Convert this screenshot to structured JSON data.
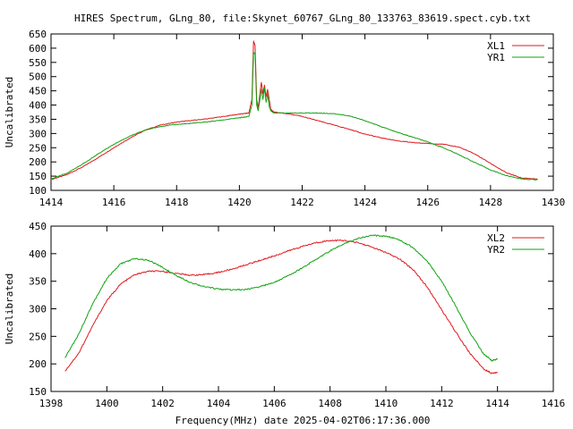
{
  "figure": {
    "title": "HIRES Spectrum, GLng_80, file:Skynet_60767_GLng_80_133763_83619.spect.cyb.txt",
    "footer": "Frequency(MHz) date 2025-04-02T06:17:36.000"
  },
  "chart_data": [
    {
      "type": "line",
      "ylabel": "Uncalibrated",
      "xlabel": "",
      "xlim": [
        1414,
        1430
      ],
      "ylim": [
        100,
        650
      ],
      "xticks": [
        1414,
        1416,
        1418,
        1420,
        1422,
        1424,
        1426,
        1428,
        1430
      ],
      "yticks": [
        100,
        150,
        200,
        250,
        300,
        350,
        400,
        450,
        500,
        550,
        600,
        650
      ],
      "legend_position": "top-right",
      "grid": false,
      "series": [
        {
          "name": "XL1",
          "color": "#e0191e",
          "points": [
            [
              1414.0,
              138
            ],
            [
              1414.5,
              155
            ],
            [
              1415.0,
              182
            ],
            [
              1415.5,
              215
            ],
            [
              1416.0,
              250
            ],
            [
              1416.5,
              283
            ],
            [
              1417.0,
              312
            ],
            [
              1417.5,
              330
            ],
            [
              1418.0,
              340
            ],
            [
              1418.5,
              346
            ],
            [
              1419.0,
              352
            ],
            [
              1419.5,
              360
            ],
            [
              1420.0,
              368
            ],
            [
              1420.3,
              372
            ],
            [
              1420.4,
              420
            ],
            [
              1420.45,
              625
            ],
            [
              1420.5,
              610
            ],
            [
              1420.55,
              420
            ],
            [
              1420.6,
              390
            ],
            [
              1420.7,
              480
            ],
            [
              1420.75,
              440
            ],
            [
              1420.8,
              470
            ],
            [
              1420.85,
              430
            ],
            [
              1420.9,
              455
            ],
            [
              1420.95,
              420
            ],
            [
              1421.0,
              385
            ],
            [
              1421.1,
              375
            ],
            [
              1421.5,
              370
            ],
            [
              1422.0,
              360
            ],
            [
              1422.5,
              345
            ],
            [
              1423.0,
              330
            ],
            [
              1423.5,
              315
            ],
            [
              1424.0,
              298
            ],
            [
              1424.5,
              285
            ],
            [
              1425.0,
              275
            ],
            [
              1425.5,
              268
            ],
            [
              1426.0,
              265
            ],
            [
              1426.5,
              262
            ],
            [
              1427.0,
              252
            ],
            [
              1427.5,
              228
            ],
            [
              1428.0,
              195
            ],
            [
              1428.5,
              162
            ],
            [
              1429.0,
              143
            ],
            [
              1429.5,
              140
            ]
          ]
        },
        {
          "name": "YR1",
          "color": "#12a212",
          "points": [
            [
              1414.0,
              140
            ],
            [
              1414.5,
              160
            ],
            [
              1415.0,
              192
            ],
            [
              1415.5,
              228
            ],
            [
              1416.0,
              262
            ],
            [
              1416.5,
              290
            ],
            [
              1417.0,
              312
            ],
            [
              1417.5,
              325
            ],
            [
              1418.0,
              332
            ],
            [
              1418.5,
              336
            ],
            [
              1419.0,
              341
            ],
            [
              1419.5,
              348
            ],
            [
              1420.0,
              355
            ],
            [
              1420.3,
              360
            ],
            [
              1420.4,
              400
            ],
            [
              1420.45,
              585
            ],
            [
              1420.5,
              580
            ],
            [
              1420.55,
              400
            ],
            [
              1420.6,
              380
            ],
            [
              1420.7,
              455
            ],
            [
              1420.75,
              420
            ],
            [
              1420.8,
              460
            ],
            [
              1420.85,
              410
            ],
            [
              1420.9,
              440
            ],
            [
              1420.95,
              395
            ],
            [
              1421.0,
              380
            ],
            [
              1421.1,
              372
            ],
            [
              1421.5,
              372
            ],
            [
              1422.0,
              372
            ],
            [
              1422.5,
              372
            ],
            [
              1423.0,
              370
            ],
            [
              1423.5,
              362
            ],
            [
              1424.0,
              345
            ],
            [
              1424.5,
              325
            ],
            [
              1425.0,
              305
            ],
            [
              1425.5,
              288
            ],
            [
              1426.0,
              270
            ],
            [
              1426.5,
              250
            ],
            [
              1427.0,
              225
            ],
            [
              1427.5,
              198
            ],
            [
              1428.0,
              172
            ],
            [
              1428.5,
              152
            ],
            [
              1429.0,
              140
            ],
            [
              1429.5,
              137
            ]
          ]
        }
      ]
    },
    {
      "type": "line",
      "ylabel": "Uncalibrated",
      "xlabel": "",
      "xlim": [
        1398,
        1416
      ],
      "ylim": [
        150,
        450
      ],
      "xticks": [
        1398,
        1400,
        1402,
        1404,
        1406,
        1408,
        1410,
        1412,
        1414,
        1416
      ],
      "yticks": [
        150,
        200,
        250,
        300,
        350,
        400,
        450
      ],
      "legend_position": "top-right",
      "grid": false,
      "series": [
        {
          "name": "XL2",
          "color": "#e0191e",
          "points": [
            [
              1398.5,
              187
            ],
            [
              1399.0,
              220
            ],
            [
              1399.5,
              270
            ],
            [
              1400.0,
              315
            ],
            [
              1400.5,
              345
            ],
            [
              1401.0,
              362
            ],
            [
              1401.5,
              368
            ],
            [
              1402.0,
              368
            ],
            [
              1402.5,
              364
            ],
            [
              1403.0,
              361
            ],
            [
              1403.5,
              362
            ],
            [
              1404.0,
              366
            ],
            [
              1404.5,
              372
            ],
            [
              1405.0,
              380
            ],
            [
              1405.5,
              388
            ],
            [
              1406.0,
              396
            ],
            [
              1406.5,
              405
            ],
            [
              1407.0,
              413
            ],
            [
              1407.5,
              420
            ],
            [
              1408.0,
              424
            ],
            [
              1408.5,
              424
            ],
            [
              1409.0,
              420
            ],
            [
              1409.5,
              412
            ],
            [
              1410.0,
              402
            ],
            [
              1410.5,
              390
            ],
            [
              1411.0,
              370
            ],
            [
              1411.5,
              338
            ],
            [
              1412.0,
              298
            ],
            [
              1412.5,
              258
            ],
            [
              1413.0,
              220
            ],
            [
              1413.5,
              191
            ],
            [
              1413.8,
              183
            ],
            [
              1414.0,
              185
            ]
          ]
        },
        {
          "name": "YR2",
          "color": "#12a212",
          "points": [
            [
              1398.5,
              211
            ],
            [
              1399.0,
              255
            ],
            [
              1399.5,
              310
            ],
            [
              1400.0,
              355
            ],
            [
              1400.5,
              382
            ],
            [
              1401.0,
              391
            ],
            [
              1401.5,
              388
            ],
            [
              1402.0,
              375
            ],
            [
              1402.5,
              360
            ],
            [
              1403.0,
              348
            ],
            [
              1403.5,
              340
            ],
            [
              1404.0,
              336
            ],
            [
              1404.5,
              334
            ],
            [
              1405.0,
              335
            ],
            [
              1405.5,
              340
            ],
            [
              1406.0,
              348
            ],
            [
              1406.5,
              360
            ],
            [
              1407.0,
              374
            ],
            [
              1407.5,
              390
            ],
            [
              1408.0,
              405
            ],
            [
              1408.5,
              418
            ],
            [
              1409.0,
              428
            ],
            [
              1409.5,
              433
            ],
            [
              1410.0,
              432
            ],
            [
              1410.5,
              425
            ],
            [
              1411.0,
              410
            ],
            [
              1411.5,
              385
            ],
            [
              1412.0,
              350
            ],
            [
              1412.5,
              305
            ],
            [
              1413.0,
              258
            ],
            [
              1413.5,
              218
            ],
            [
              1413.8,
              206
            ],
            [
              1414.0,
              209
            ]
          ]
        }
      ]
    }
  ]
}
